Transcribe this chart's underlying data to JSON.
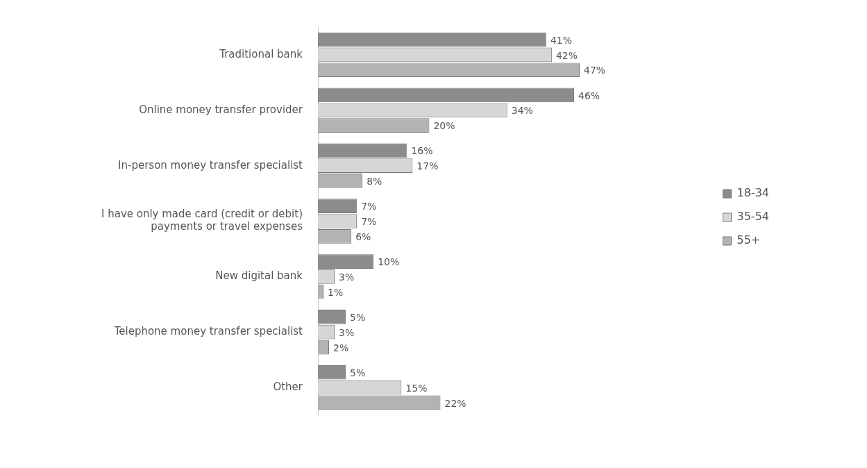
{
  "chart_data": {
    "type": "bar",
    "orientation": "horizontal",
    "categories": [
      "Traditional bank",
      "Online money transfer provider",
      "In-person money transfer specialist",
      "I have only made card (credit or debit) payments or travel expenses",
      "New digital bank",
      "Telephone money transfer specialist",
      "Other"
    ],
    "series": [
      {
        "name": "18-34",
        "color": "#8c8c8c",
        "values": [
          41,
          46,
          16,
          7,
          10,
          5,
          5
        ],
        "value_labels": [
          "41%",
          "46%",
          "16%",
          "7%",
          "10%",
          "5%",
          "5%"
        ]
      },
      {
        "name": "35-54",
        "color": "#d6d6d6",
        "values": [
          42,
          34,
          17,
          7,
          3,
          3,
          15
        ],
        "value_labels": [
          "42%",
          "34%",
          "17%",
          "7%",
          "3%",
          "3%",
          "15%"
        ]
      },
      {
        "name": "55+",
        "color": "#b3b3b3",
        "values": [
          47,
          20,
          8,
          6,
          1,
          2,
          22
        ],
        "value_labels": [
          "47%",
          "20%",
          "8%",
          "6%",
          "1%",
          "2%",
          "22%"
        ]
      }
    ],
    "legend": "right"
  }
}
